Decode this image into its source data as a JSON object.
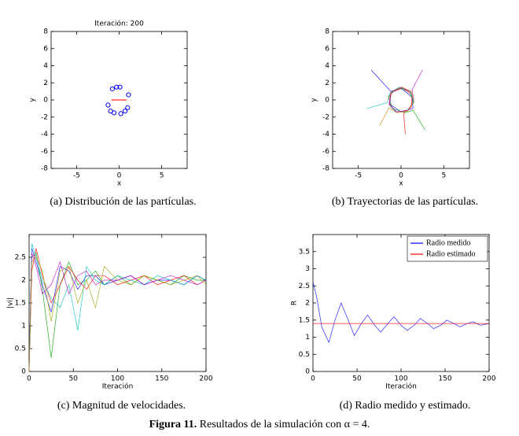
{
  "chart_data": [
    {
      "type": "scatter",
      "title": "Iteración: 200",
      "x_label": "x",
      "y_label": "y",
      "caption": "(a)  Distribución de las partículas.",
      "xlim": [
        -8,
        8
      ],
      "ylim": [
        -8,
        8
      ],
      "xticks": [
        -5,
        0,
        5
      ],
      "yticks": [
        -8,
        -6,
        -4,
        -2,
        0,
        2,
        4,
        6,
        8
      ],
      "series": [
        {
          "color": "#0000ff",
          "style": "marker",
          "x": [
            -0.8,
            -0.3,
            0.1,
            1.1,
            -1.3,
            -1.0,
            -0.6,
            0.2,
            0.7,
            1.0
          ],
          "values": [
            1.3,
            1.5,
            1.5,
            0.6,
            -0.6,
            -1.3,
            -1.5,
            -1.6,
            -1.3,
            -0.9
          ]
        },
        {
          "color": "#ff0000",
          "style": "line",
          "x": [
            -0.9,
            0.9
          ],
          "values": [
            0,
            0
          ]
        }
      ]
    },
    {
      "type": "line",
      "x_label": "x",
      "y_label": "y",
      "caption": "(b)  Trayectorias de las partículas.",
      "xlim": [
        -8,
        8
      ],
      "ylim": [
        -8,
        8
      ],
      "xticks": [
        -5,
        0,
        5
      ],
      "yticks": [
        -8,
        -6,
        -4,
        -2,
        0,
        2,
        4,
        6,
        8
      ],
      "series": [
        {
          "color": "#0000ff",
          "x": [
            -3.5,
            -1.2,
            0,
            1.3,
            1.4,
            0,
            -1.3,
            -1.2,
            0
          ],
          "values": [
            3.5,
            1.0,
            1.4,
            0.3,
            -1.0,
            -1.4,
            -0.5,
            0.9,
            1.4
          ]
        },
        {
          "color": "#00a000",
          "x": [
            2.8,
            1.4,
            0.5,
            -1.0,
            -1.5,
            -0.4,
            1.0,
            1.5,
            0.6
          ],
          "values": [
            -3.5,
            -1.2,
            -1.5,
            -1.0,
            0.4,
            1.4,
            1.0,
            -0.3,
            -1.4
          ]
        },
        {
          "color": "#ff0000",
          "x": [
            0.5,
            0.3,
            1.2,
            1.3,
            0.2,
            -1.1,
            -1.4,
            -0.6,
            0.8
          ],
          "values": [
            -4.0,
            -1.5,
            -0.9,
            0.6,
            1.4,
            0.9,
            -0.4,
            -1.4,
            -1.2
          ]
        },
        {
          "color": "#00c0c0",
          "x": [
            -4.0,
            -1.6,
            -1.3,
            -0.2,
            1.1,
            1.5,
            0.7,
            -0.6,
            -1.4
          ],
          "values": [
            -1.0,
            -0.3,
            0.8,
            1.5,
            1.0,
            -0.2,
            -1.3,
            -1.4,
            -0.6
          ]
        },
        {
          "color": "#c000c0",
          "x": [
            2.5,
            1.3,
            1.5,
            0.8,
            -0.5,
            -1.4,
            -1.2,
            0.0,
            1.2
          ],
          "values": [
            3.5,
            1.2,
            -0.1,
            -1.2,
            -1.4,
            -0.5,
            0.8,
            1.5,
            0.9
          ]
        },
        {
          "color": "#d08000",
          "x": [
            -2.5,
            -1.4,
            -0.5,
            0.8,
            1.5,
            1.2,
            0.1,
            -1.1,
            -1.5
          ],
          "values": [
            -3.0,
            -0.9,
            -1.5,
            -1.3,
            -0.1,
            1.0,
            1.5,
            1.0,
            0.0
          ]
        }
      ]
    },
    {
      "type": "line",
      "x_label": "Iteración",
      "y_label": "|vi|",
      "caption": "(c)  Magnitud de velocidades.",
      "xlim": [
        0,
        200
      ],
      "ylim": [
        0,
        3
      ],
      "xticks": [
        0,
        50,
        100,
        150,
        200
      ],
      "yticks": [
        0,
        0.5,
        1,
        1.5,
        2,
        2.5
      ],
      "x": [
        0,
        3,
        8,
        15,
        25,
        35,
        45,
        55,
        65,
        75,
        85,
        100,
        115,
        130,
        145,
        160,
        175,
        190,
        200
      ],
      "series": [
        {
          "color": "#0000ff",
          "values": [
            0,
            2.7,
            2.4,
            1.9,
            1.3,
            2.3,
            2.2,
            1.8,
            2.1,
            2.1,
            1.9,
            2.0,
            2.1,
            1.9,
            2.0,
            2.0,
            1.9,
            2.1,
            2.0
          ]
        },
        {
          "color": "#00a000",
          "values": [
            0,
            2.5,
            2.6,
            1.8,
            0.3,
            1.9,
            2.4,
            1.9,
            2.0,
            2.2,
            1.9,
            2.1,
            1.9,
            2.1,
            2.0,
            1.9,
            2.1,
            2.0,
            2.0
          ]
        },
        {
          "color": "#ff0000",
          "values": [
            0,
            2.2,
            2.7,
            2.1,
            1.5,
            1.9,
            2.3,
            2.0,
            1.8,
            2.1,
            2.1,
            1.9,
            2.0,
            2.1,
            1.9,
            2.0,
            2.1,
            1.9,
            2.0
          ]
        },
        {
          "color": "#00c0c0",
          "values": [
            0,
            2.8,
            2.5,
            2.0,
            1.6,
            1.4,
            1.9,
            0.9,
            2.3,
            2.0,
            1.9,
            2.1,
            2.0,
            1.9,
            2.1,
            2.0,
            1.9,
            2.1,
            2.0
          ]
        },
        {
          "color": "#c000c0",
          "values": [
            0,
            2.6,
            2.3,
            1.7,
            1.9,
            2.4,
            1.7,
            2.1,
            2.2,
            1.9,
            2.0,
            2.0,
            2.1,
            1.9,
            2.0,
            2.1,
            2.0,
            1.9,
            2.0
          ]
        },
        {
          "color": "#a0a000",
          "values": [
            0,
            2.4,
            2.5,
            2.2,
            1.1,
            2.2,
            2.3,
            1.5,
            2.0,
            1.4,
            2.3,
            2.0,
            1.9,
            2.1,
            2.0,
            1.9,
            2.0,
            2.1,
            1.9
          ]
        }
      ]
    },
    {
      "type": "line",
      "x_label": "Iteración",
      "y_label": "R",
      "caption": "(d)  Radio medido y estimado.",
      "xlim": [
        0,
        200
      ],
      "ylim": [
        0,
        4
      ],
      "xticks": [
        0,
        50,
        100,
        150,
        200
      ],
      "yticks": [
        0,
        0.5,
        1,
        1.5,
        2,
        2.5,
        3,
        3.5
      ],
      "legend": "northeast",
      "series": [
        {
          "name": "Radio medido",
          "color": "#0000ff",
          "x": [
            0,
            4,
            10,
            18,
            25,
            32,
            40,
            47,
            55,
            62,
            70,
            77,
            85,
            92,
            100,
            107,
            115,
            122,
            130,
            137,
            145,
            152,
            160,
            167,
            175,
            182,
            190,
            200
          ],
          "values": [
            2.6,
            2.2,
            1.3,
            0.85,
            1.5,
            2.0,
            1.5,
            1.05,
            1.4,
            1.65,
            1.35,
            1.15,
            1.4,
            1.6,
            1.35,
            1.2,
            1.35,
            1.55,
            1.4,
            1.25,
            1.35,
            1.5,
            1.4,
            1.3,
            1.4,
            1.45,
            1.35,
            1.4
          ]
        },
        {
          "name": "Radio estimado",
          "color": "#ff0000",
          "x": [
            0,
            200
          ],
          "values": [
            1.4,
            1.4
          ]
        }
      ]
    }
  ],
  "figure": {
    "label": "Figura 11.",
    "text": "Resultados de la simulación con α = 4."
  }
}
